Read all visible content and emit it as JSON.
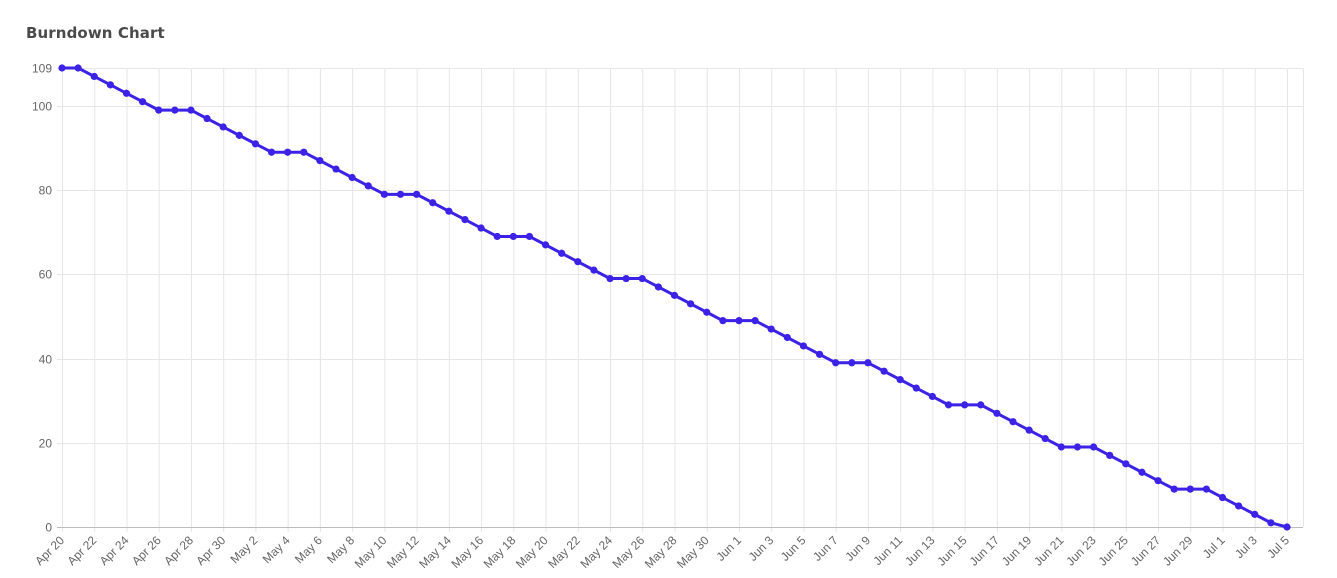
{
  "chart_title": "Burndown Chart",
  "chart_data": {
    "type": "line",
    "title": "Burndown Chart",
    "xlabel": "",
    "ylabel": "",
    "ylim": [
      0,
      109
    ],
    "y_ticks": [
      0,
      20,
      40,
      60,
      80,
      100,
      109
    ],
    "x_tick_labels": [
      "Apr 20",
      "Apr 22",
      "Apr 24",
      "Apr 26",
      "Apr 28",
      "Apr 30",
      "May 2",
      "May 4",
      "May 6",
      "May 8",
      "May 10",
      "May 12",
      "May 14",
      "May 16",
      "May 18",
      "May 20",
      "May 22",
      "May 24",
      "May 26",
      "May 28",
      "May 30",
      "Jun 1",
      "Jun 3",
      "Jun 5",
      "Jun 7",
      "Jun 9",
      "Jun 11",
      "Jun 13",
      "Jun 15",
      "Jun 17",
      "Jun 19",
      "Jun 21",
      "Jun 23",
      "Jun 25",
      "Jun 27",
      "Jun 29",
      "Jul 1",
      "Jul 3",
      "Jul 5"
    ],
    "x_start": "2022-04-20",
    "x_end": "2022-07-05",
    "grid": true,
    "line_color": "#3c22e6",
    "series": [
      {
        "values": [
          109,
          109,
          107,
          105,
          103,
          101,
          99,
          99,
          99,
          97,
          95,
          93,
          91,
          89,
          89,
          89,
          87,
          85,
          83,
          81,
          79,
          79,
          79,
          77,
          75,
          73,
          71,
          69,
          69,
          69,
          67,
          65,
          63,
          61,
          59,
          59,
          59,
          57,
          55,
          53,
          51,
          49,
          49,
          49,
          47,
          45,
          43,
          41,
          39,
          39,
          39,
          37,
          35,
          33,
          31,
          29,
          29,
          29,
          27,
          25,
          23,
          21,
          19,
          19,
          19,
          17,
          15,
          13,
          11,
          9,
          9,
          9,
          7,
          5,
          3,
          1,
          0
        ]
      }
    ]
  }
}
